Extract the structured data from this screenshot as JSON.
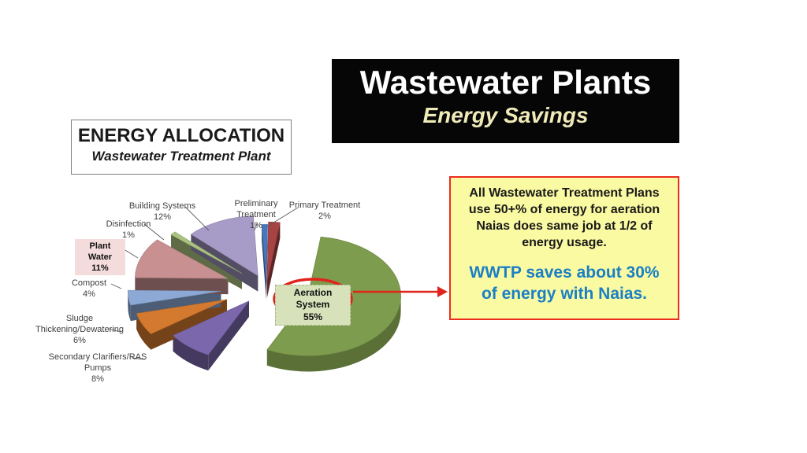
{
  "title_box": {
    "title": "Wastewater Plants",
    "subtitle": "Energy Savings"
  },
  "heading_box": {
    "title": "ENERGY ALLOCATION",
    "subtitle": "Wastewater Treatment Plant"
  },
  "callout_box": {
    "body_lines": [
      "All Wastewater Treatment Plans",
      "use  50+% of energy for aeration",
      "Naias does same job at 1/2 of",
      "energy usage."
    ],
    "highlight_lines": [
      "WWTP saves about 30%",
      "of energy with Naias."
    ],
    "bg_color": "#fafaa2",
    "border_color": "#ed2b20",
    "highlight_color": "#1a7fc5"
  },
  "chart_data": {
    "type": "pie",
    "style": "3d-exploded",
    "title": "ENERGY ALLOCATION",
    "subtitle": "Wastewater Treatment Plant",
    "legend": "none",
    "slices": [
      {
        "label": "Aeration System",
        "pct": 55,
        "color": "#7e9c4d"
      },
      {
        "label": "Secondary Clarifiers/RAS Pumps",
        "pct": 8,
        "color": "#7b68ac"
      },
      {
        "label": "Sludge Thickening/Dewatering",
        "pct": 6,
        "color": "#d47a2f"
      },
      {
        "label": "Compost",
        "pct": 4,
        "color": "#8ca9d6"
      },
      {
        "label": "Plant Water",
        "pct": 11,
        "color": "#c89090"
      },
      {
        "label": "Disinfection",
        "pct": 1,
        "color": "#aac380"
      },
      {
        "label": "Building Systems",
        "pct": 12,
        "color": "#a79bc8"
      },
      {
        "label": "Preliminary Treatment",
        "pct": 1,
        "color": "#4876bd"
      },
      {
        "label": "Primary Treatment",
        "pct": 2,
        "color": "#a84343"
      }
    ],
    "annotations": {
      "highlighted_slice": "Aeration System",
      "highlight_shape": "red-ellipse",
      "arrow_color": "#e0241b",
      "arrow_target": "callout_box"
    }
  }
}
